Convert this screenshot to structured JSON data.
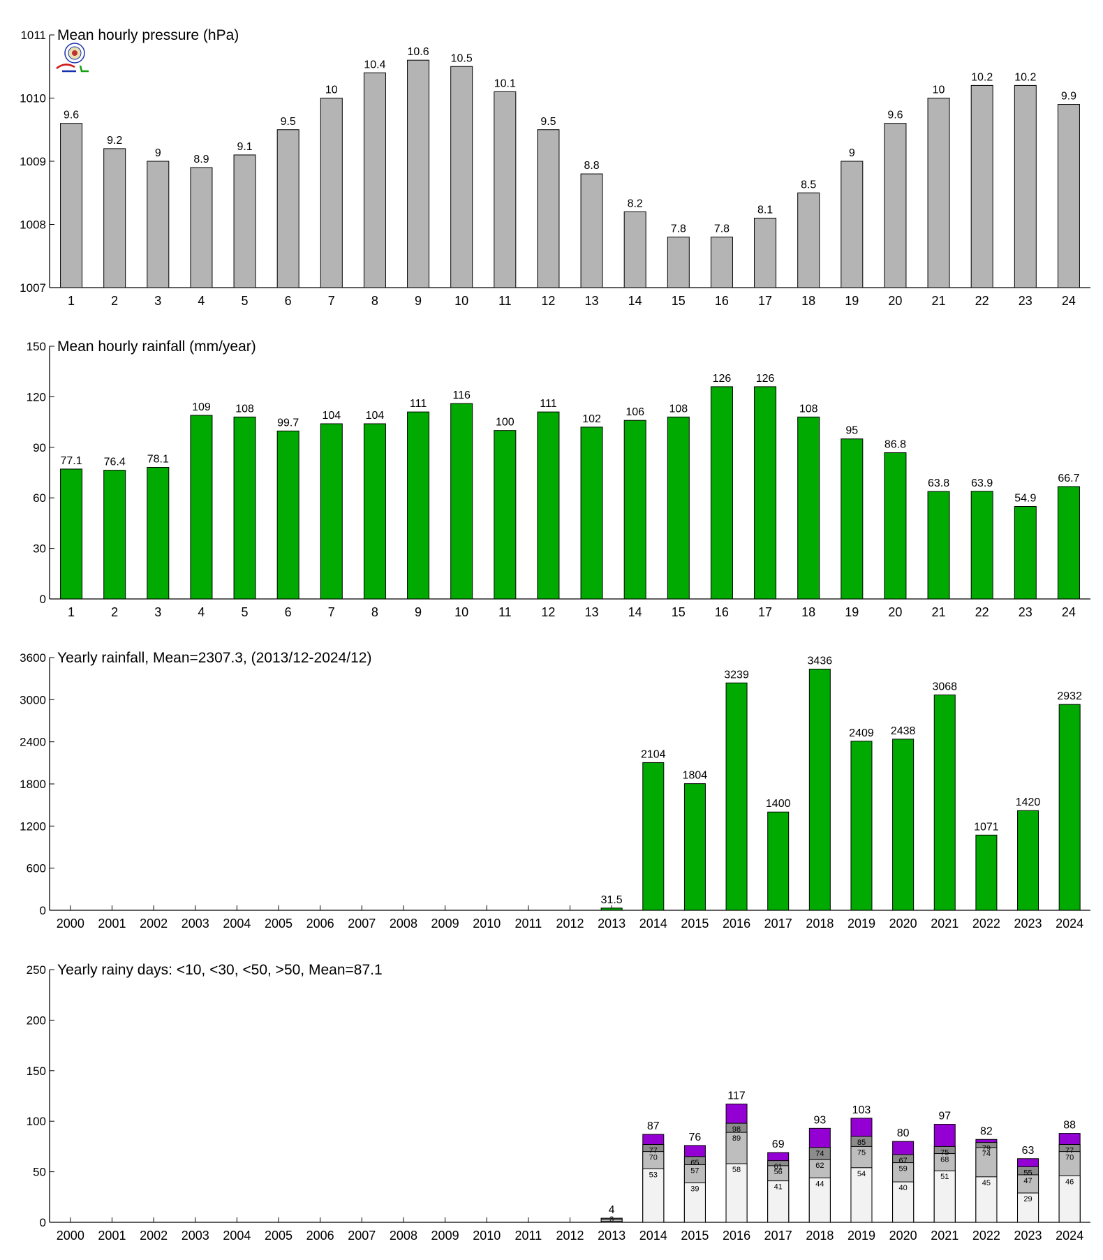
{
  "colors": {
    "pressure_bar": "#b4b4b4",
    "rain_bar": "#00aa00",
    "days_lt10": "#f2f2f2",
    "days_lt30": "#bebebe",
    "days_lt50": "#8c8c8c",
    "days_gt50": "#9400d3",
    "logo_red": "#d01818",
    "logo_blue": "#1830b0",
    "logo_green": "#10a010"
  },
  "logo": {
    "icon": "lab-logo-icon"
  },
  "chart_data": [
    {
      "type": "bar",
      "title": "Mean hourly pressure (hPa)",
      "categories": [
        "1",
        "2",
        "3",
        "4",
        "5",
        "6",
        "7",
        "8",
        "9",
        "10",
        "11",
        "12",
        "13",
        "14",
        "15",
        "16",
        "17",
        "18",
        "19",
        "20",
        "21",
        "22",
        "23",
        "24"
      ],
      "values": [
        1009.6,
        1009.2,
        1009.0,
        1008.9,
        1009.1,
        1009.5,
        1010.0,
        1010.4,
        1010.6,
        1010.5,
        1010.1,
        1009.5,
        1008.8,
        1008.2,
        1007.8,
        1007.8,
        1008.1,
        1008.5,
        1009.0,
        1009.6,
        1010.0,
        1010.2,
        1010.2,
        1009.9
      ],
      "labels": [
        "9.6",
        "9.2",
        "9",
        "8.9",
        "9.1",
        "9.5",
        "10",
        "10.4",
        "10.6",
        "10.5",
        "10.1",
        "9.5",
        "8.8",
        "8.2",
        "7.8",
        "7.8",
        "8.1",
        "8.5",
        "9",
        "9.6",
        "10",
        "10.2",
        "10.2",
        "9.9"
      ],
      "ylim": [
        1007,
        1011
      ],
      "yticks": [
        1007,
        1008,
        1009,
        1010,
        1011
      ],
      "grid": false
    },
    {
      "type": "bar",
      "title": "Mean hourly rainfall (mm/year)",
      "categories": [
        "1",
        "2",
        "3",
        "4",
        "5",
        "6",
        "7",
        "8",
        "9",
        "10",
        "11",
        "12",
        "13",
        "14",
        "15",
        "16",
        "17",
        "18",
        "19",
        "20",
        "21",
        "22",
        "23",
        "24"
      ],
      "values": [
        77.1,
        76.4,
        78.1,
        109,
        108,
        99.7,
        104,
        104,
        111,
        116,
        100,
        111,
        102,
        106,
        108,
        126,
        126,
        108,
        95,
        86.8,
        63.8,
        63.9,
        54.9,
        66.7
      ],
      "labels": [
        "77.1",
        "76.4",
        "78.1",
        "109",
        "108",
        "99.7",
        "104",
        "104",
        "111",
        "116",
        "100",
        "111",
        "102",
        "106",
        "108",
        "126",
        "126",
        "108",
        "95",
        "86.8",
        "63.8",
        "63.9",
        "54.9",
        "66.7"
      ],
      "ylim": [
        0,
        150
      ],
      "yticks": [
        0,
        30,
        60,
        90,
        120,
        150
      ],
      "grid": false
    },
    {
      "type": "bar",
      "title": "Yearly rainfall, Mean=2307.3, (2013/12-2024/12)",
      "categories": [
        "2000",
        "2001",
        "2002",
        "2003",
        "2004",
        "2005",
        "2006",
        "2007",
        "2008",
        "2009",
        "2010",
        "2011",
        "2012",
        "2013",
        "2014",
        "2015",
        "2016",
        "2017",
        "2018",
        "2019",
        "2020",
        "2021",
        "2022",
        "2023",
        "2024"
      ],
      "values": [
        null,
        null,
        null,
        null,
        null,
        null,
        null,
        null,
        null,
        null,
        null,
        null,
        null,
        31.5,
        2104,
        1804,
        3239,
        1400,
        3436,
        2409,
        2438,
        3068,
        1071,
        1420,
        2932
      ],
      "labels": [
        "",
        "",
        "",
        "",
        "",
        "",
        "",
        "",
        "",
        "",
        "",
        "",
        "",
        "31.5",
        "2104",
        "1804",
        "3239",
        "1400",
        "3436",
        "2409",
        "2438",
        "3068",
        "1071",
        "1420",
        "2932"
      ],
      "ylim": [
        0,
        3600
      ],
      "yticks": [
        0,
        600,
        1200,
        1800,
        2400,
        3000,
        3600
      ],
      "grid": false
    },
    {
      "type": "bar",
      "stacked": true,
      "title": "Yearly rainy days: <10, <30, <50, >50, Mean=87.1",
      "categories": [
        "2000",
        "2001",
        "2002",
        "2003",
        "2004",
        "2005",
        "2006",
        "2007",
        "2008",
        "2009",
        "2010",
        "2011",
        "2012",
        "2013",
        "2014",
        "2015",
        "2016",
        "2017",
        "2018",
        "2019",
        "2020",
        "2021",
        "2022",
        "2023",
        "2024"
      ],
      "ylim": [
        0,
        250
      ],
      "yticks": [
        0,
        50,
        100,
        150,
        200,
        250
      ],
      "grid": false,
      "cumulative": [
        {
          "key": "lt10",
          "values": [
            null,
            null,
            null,
            null,
            null,
            null,
            null,
            null,
            null,
            null,
            null,
            null,
            null,
            1,
            53,
            39,
            58,
            41,
            44,
            54,
            40,
            51,
            45,
            29,
            46
          ]
        },
        {
          "key": "lt30",
          "values": [
            null,
            null,
            null,
            null,
            null,
            null,
            null,
            null,
            null,
            null,
            null,
            null,
            null,
            3,
            70,
            57,
            89,
            56,
            62,
            75,
            59,
            68,
            74,
            47,
            70
          ]
        },
        {
          "key": "lt50",
          "values": [
            null,
            null,
            null,
            null,
            null,
            null,
            null,
            null,
            null,
            null,
            null,
            null,
            null,
            4,
            77,
            65,
            98,
            61,
            74,
            85,
            67,
            75,
            79,
            55,
            77
          ]
        },
        {
          "key": "gt50",
          "values": [
            null,
            null,
            null,
            null,
            null,
            null,
            null,
            null,
            null,
            null,
            null,
            null,
            null,
            4,
            87,
            76,
            117,
            69,
            93,
            103,
            80,
            97,
            82,
            63,
            88
          ]
        }
      ]
    }
  ]
}
